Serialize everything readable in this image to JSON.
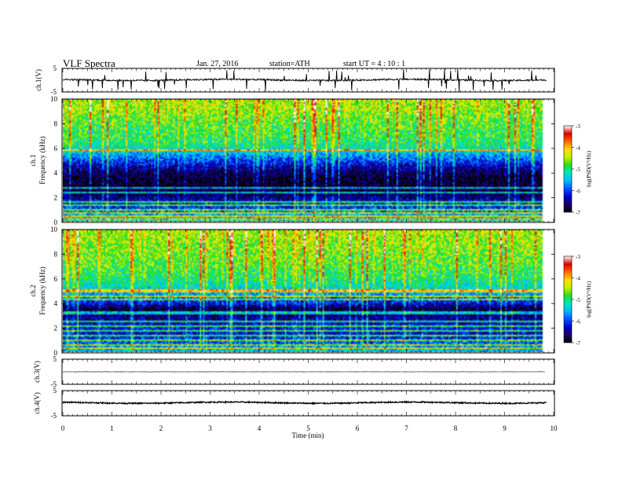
{
  "header": {
    "title": "VLF  Spectra",
    "date": "Jan.  27,  2016",
    "station": "station=ATH",
    "start": "start   UT  =   4   : 10 : 1"
  },
  "colors": {
    "spectrum_stops": [
      "#000000",
      "#1a0066",
      "#0000cc",
      "#0055ff",
      "#00bbff",
      "#00e5c0",
      "#22dd22",
      "#ccee00",
      "#ffdd00",
      "#ff6600",
      "#dd0000",
      "#ffffff"
    ],
    "trace": "#000000"
  },
  "chart_data": [
    {
      "id": "ch1_waveform",
      "type": "line",
      "ylabel": "ch.1(V)",
      "yticks": [
        "5",
        "-5"
      ],
      "ylim": [
        -5,
        5
      ],
      "xlim": [
        0,
        10
      ],
      "baseline": 0.1,
      "noise_amplitude": 0.35,
      "spikes_per_min": 14
    },
    {
      "id": "ch1_spectrogram",
      "type": "heatmap",
      "ylabel": "ch.1\nFrequency  (kHz)",
      "ylabel_lines": [
        "ch.1",
        "Frequency  (kHz)"
      ],
      "yticks": [
        "0",
        "2",
        "4",
        "6",
        "8",
        "10"
      ],
      "ylim": [
        0,
        10
      ],
      "xlim": [
        0,
        10
      ],
      "data_end_min": 9.8,
      "colorbar": {
        "label": "log(PSD(V²/Hz)",
        "ticks": [
          "-3",
          "-4",
          "-5",
          "-6",
          "-7"
        ],
        "range": [
          -7,
          -3
        ]
      },
      "profile_freq_khz": [
        0,
        0.5,
        1,
        1.5,
        2,
        2.5,
        3,
        3.5,
        4,
        4.5,
        5,
        5.5,
        6,
        6.5,
        7,
        8,
        9,
        10
      ],
      "profile_logpsd": [
        -5.2,
        -5.6,
        -6.0,
        -6.2,
        -6.6,
        -6.8,
        -6.9,
        -6.9,
        -6.7,
        -6.4,
        -6.0,
        -5.6,
        -5.2,
        -5.0,
        -4.9,
        -4.8,
        -4.6,
        -4.5
      ],
      "tones_khz": [
        0.2,
        0.4,
        0.7,
        1.0,
        1.3,
        1.6,
        2.4,
        2.8,
        5.8
      ]
    },
    {
      "id": "ch2_spectrogram",
      "type": "heatmap",
      "ylabel": "ch.2\nFrequency  (kHz)",
      "ylabel_lines": [
        "ch.2",
        "Frequency  (kHz)"
      ],
      "yticks": [
        "0",
        "2",
        "4",
        "6",
        "8",
        "10"
      ],
      "ylim": [
        0,
        10
      ],
      "xlim": [
        0,
        10
      ],
      "data_end_min": 9.8,
      "colorbar": {
        "label": "log(PSD(V²/Hz)",
        "ticks": [
          "-3",
          "-4",
          "-5",
          "-6",
          "-7"
        ],
        "range": [
          -7,
          -3
        ]
      },
      "profile_freq_khz": [
        0,
        0.5,
        1,
        1.5,
        2,
        2.5,
        3,
        3.5,
        4,
        4.5,
        5,
        5.5,
        6,
        6.5,
        7,
        8,
        9,
        10
      ],
      "profile_logpsd": [
        -5.4,
        -5.8,
        -6.0,
        -6.3,
        -6.2,
        -6.4,
        -6.6,
        -6.9,
        -6.2,
        -5.8,
        -5.4,
        -5.2,
        -5.0,
        -4.9,
        -4.8,
        -4.7,
        -4.6,
        -4.5
      ],
      "tones_khz": [
        0.3,
        0.6,
        1.0,
        1.3,
        1.7,
        2.1,
        2.5,
        3.2,
        4.3,
        4.6,
        5.0
      ]
    },
    {
      "id": "ch3_waveform",
      "type": "line",
      "ylabel": "ch.3(V)",
      "yticks": [
        "5",
        "-5"
      ],
      "ylim": [
        -5,
        5
      ],
      "xlim": [
        0,
        10
      ],
      "baseline": 0,
      "noise_amplitude": 0.05,
      "spikes_per_min": 0
    },
    {
      "id": "ch4_waveform",
      "type": "line",
      "ylabel": "ch.4(V)",
      "yticks": [
        "5",
        "-5"
      ],
      "ylim": [
        -5,
        5
      ],
      "xlim": [
        0,
        10
      ],
      "baseline": 0.2,
      "noise_amplitude": 0.25,
      "spikes_per_min": 0
    }
  ],
  "xaxis": {
    "label": "Time  (min)",
    "ticks": [
      "0",
      "1",
      "2",
      "3",
      "4",
      "5",
      "6",
      "7",
      "8",
      "9",
      "10"
    ],
    "range": [
      0,
      10
    ]
  }
}
